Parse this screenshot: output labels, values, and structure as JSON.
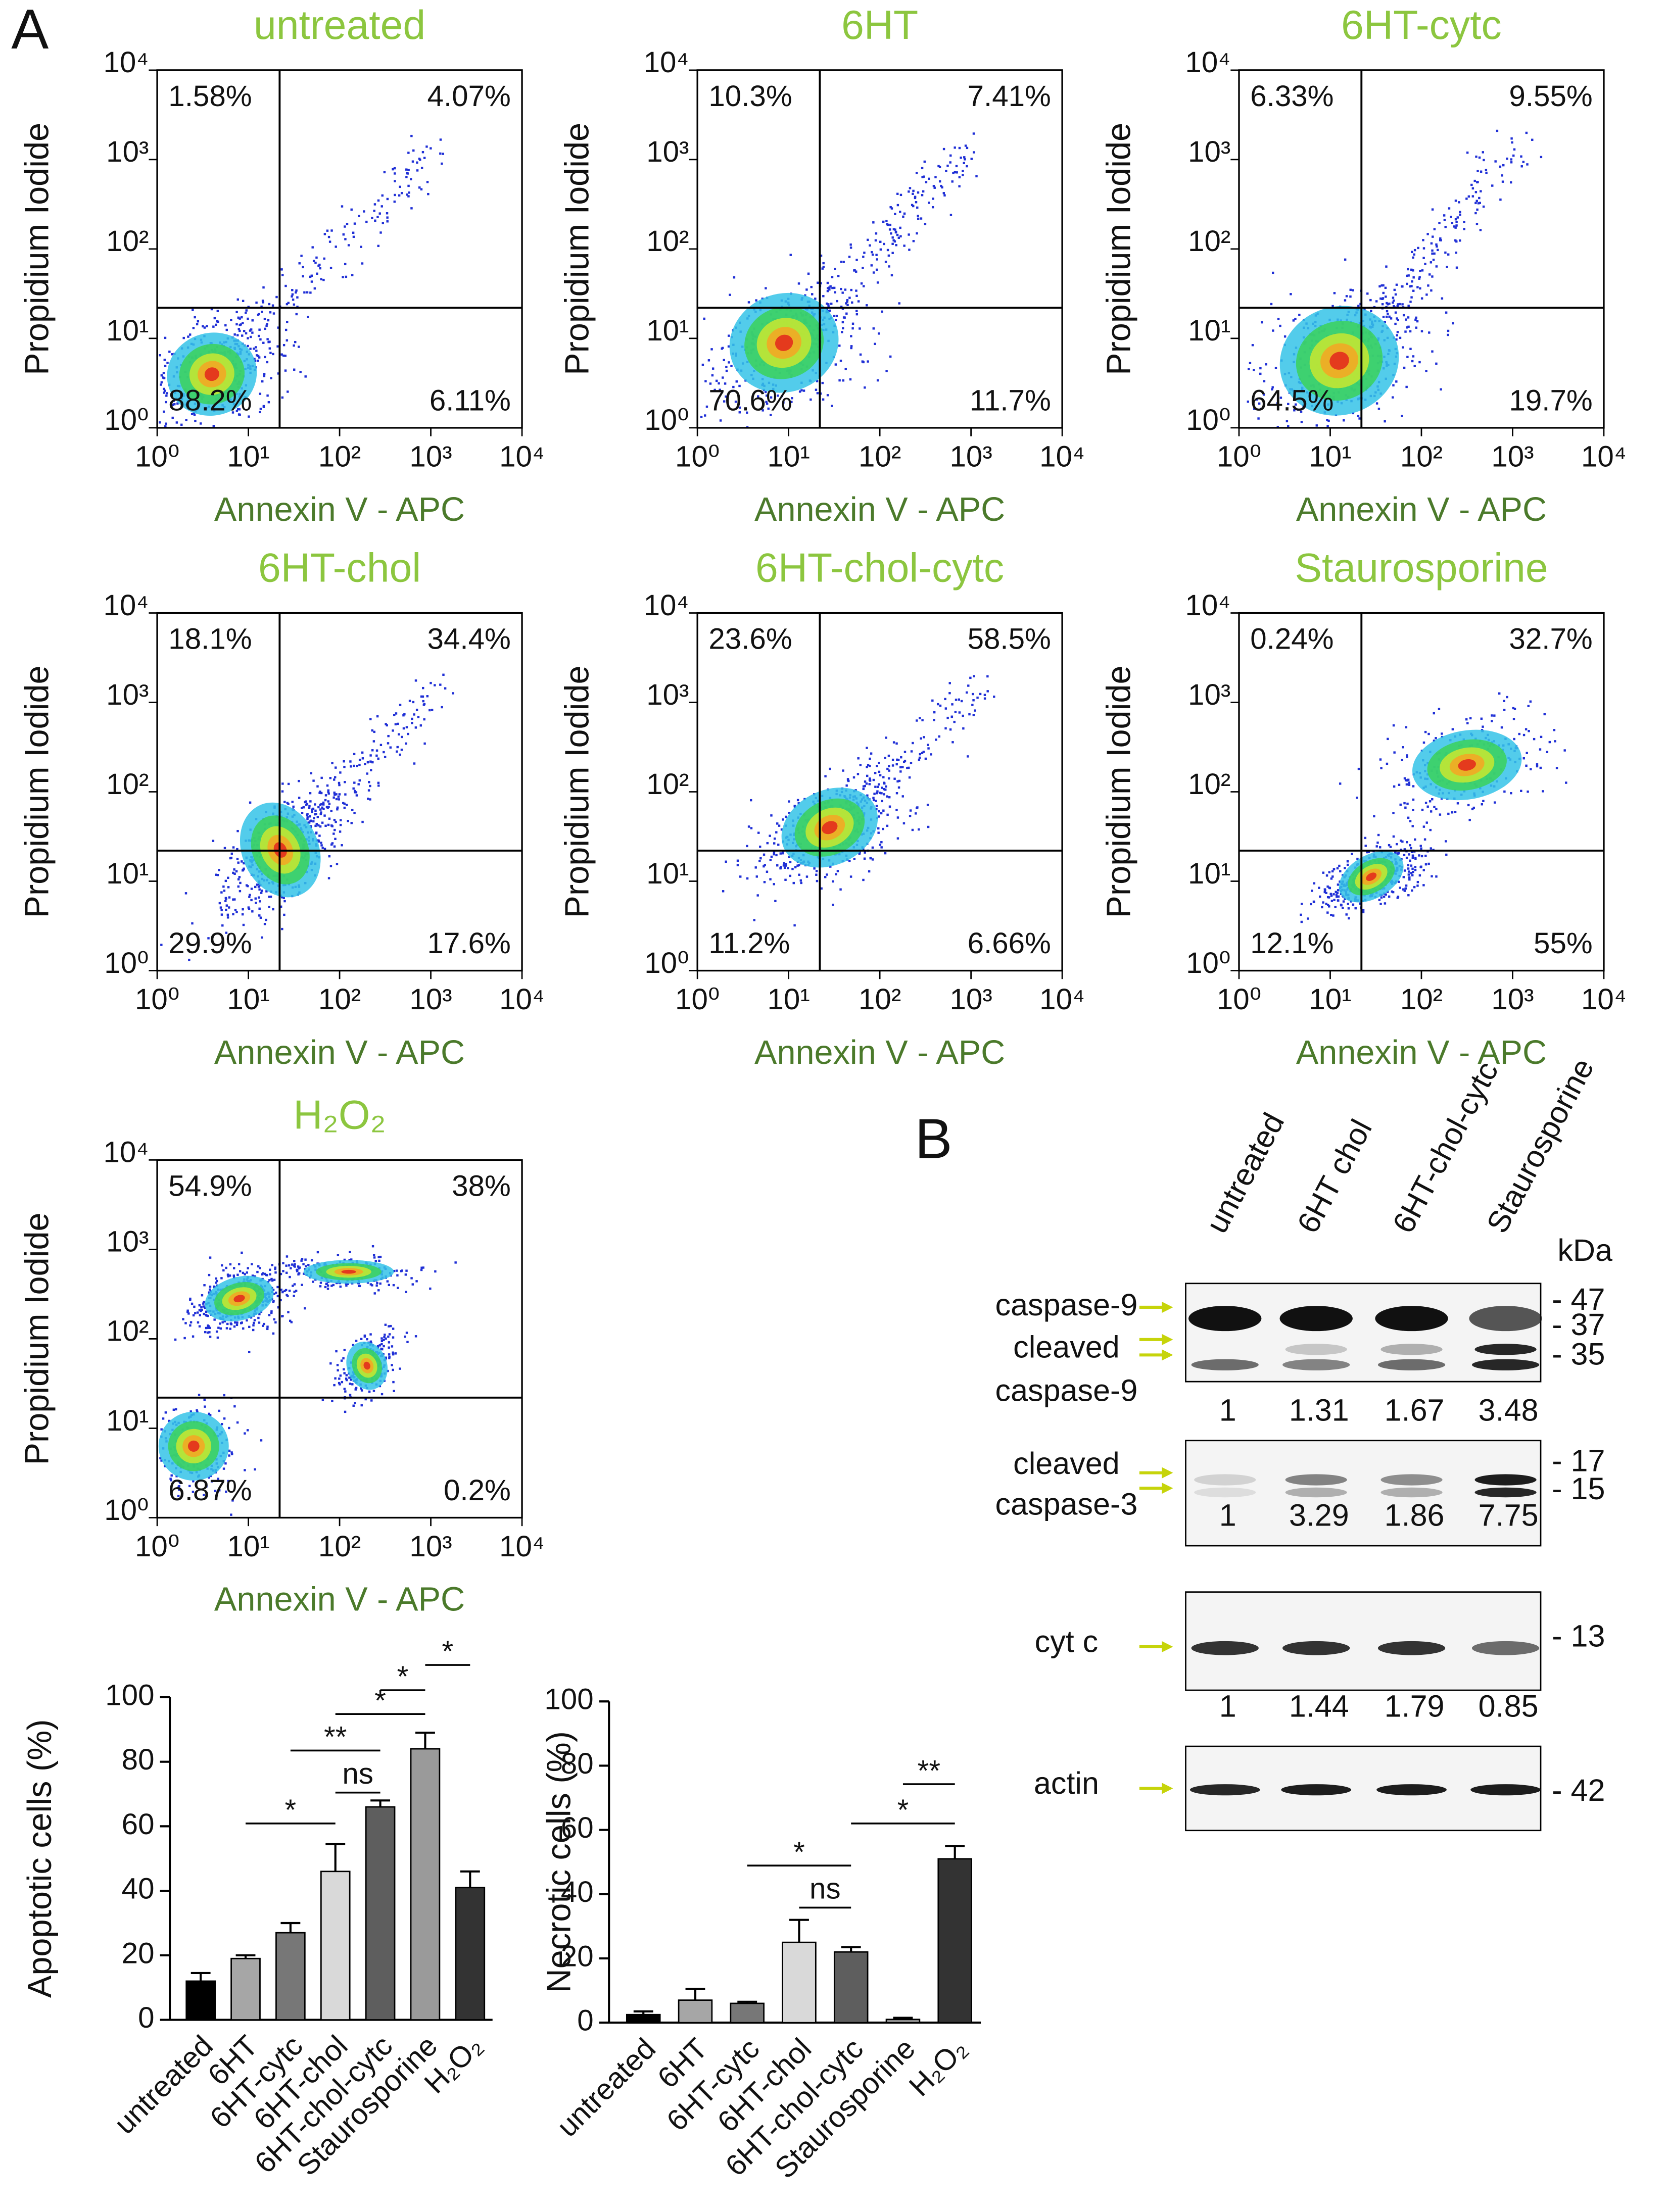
{
  "panel_a": "A",
  "panel_b": "B",
  "flow_cytometry": {
    "type": "scatter",
    "log_scale": true,
    "x_label": "Annexin V - APC",
    "y_label": "Propidium Iodide",
    "xlim": [
      1,
      10000
    ],
    "ylim": [
      1,
      10000
    ],
    "ticks": [
      {
        "value": 1,
        "label": "10⁰"
      },
      {
        "value": 10,
        "label": "10¹"
      },
      {
        "value": 100,
        "label": "10²"
      },
      {
        "value": 1000,
        "label": "10³"
      },
      {
        "value": 10000,
        "label": "10⁴"
      }
    ],
    "plots": [
      {
        "title": "untreated",
        "quadrants": [
          "1.58%",
          "4.07%",
          "88.2%",
          "6.11%"
        ],
        "gate": [
          22,
          22
        ]
      },
      {
        "title": "6HT",
        "quadrants": [
          "10.3%",
          "7.41%",
          "70.6%",
          "11.7%"
        ],
        "gate": [
          22,
          22
        ]
      },
      {
        "title": "6HT-cytc",
        "quadrants": [
          "6.33%",
          "9.55%",
          "64.5%",
          "19.7%"
        ],
        "gate": [
          22,
          22
        ]
      },
      {
        "title": "6HT-chol",
        "quadrants": [
          "18.1%",
          "34.4%",
          "29.9%",
          "17.6%"
        ],
        "gate": [
          22,
          22
        ]
      },
      {
        "title": "6HT-chol-cytc",
        "quadrants": [
          "23.6%",
          "58.5%",
          "11.2%",
          "6.66%"
        ],
        "gate": [
          22,
          22
        ]
      },
      {
        "title": "Staurosporine",
        "quadrants": [
          "0.24%",
          "32.7%",
          "12.1%",
          "55%"
        ],
        "gate": [
          22,
          22
        ]
      },
      {
        "title": "H₂O₂",
        "quadrants": [
          "54.9%",
          "38%",
          "6.87%",
          "0.2%"
        ],
        "gate": [
          22,
          22
        ]
      }
    ]
  },
  "chart_data": [
    {
      "type": "bar",
      "ylabel": "Apoptotic cells (%)",
      "categories": [
        "untreated",
        "6HT",
        "6HT-cytc",
        "6HT-chol",
        "6HT-chol-cytc",
        "Staurosporine",
        "H₂O₂"
      ],
      "values": [
        12,
        19,
        27,
        46,
        66,
        84,
        41
      ],
      "errors": [
        2.5,
        1,
        3,
        8.5,
        2,
        5,
        5
      ],
      "colors": [
        "#000000",
        "#a6a6a6",
        "#777777",
        "#d9d9d9",
        "#5e5e5e",
        "#9a9a9a",
        "#333333"
      ],
      "ylim": [
        0,
        100
      ],
      "yticks": [
        0,
        20,
        40,
        60,
        80,
        100
      ],
      "annotations": [
        {
          "label": "*",
          "between": [
            "6HT",
            "6HT-chol"
          ]
        },
        {
          "label": "**",
          "between": [
            "6HT-cytc",
            "6HT-chol-cytc"
          ]
        },
        {
          "label": "ns",
          "between": [
            "6HT-chol",
            "6HT-chol-cytc"
          ]
        },
        {
          "label": "*",
          "between": [
            "6HT-chol",
            "Staurosporine"
          ]
        },
        {
          "label": "*",
          "between": [
            "6HT-chol-cytc",
            "Staurosporine"
          ]
        },
        {
          "label": "*",
          "between": [
            "Staurosporine",
            "H₂O₂"
          ]
        }
      ]
    },
    {
      "type": "bar",
      "ylabel": "Necrotic cells (%)",
      "categories": [
        "untreated",
        "6HT",
        "6HT-cytc",
        "6HT-chol",
        "6HT-chol-cytc",
        "Staurosporine",
        "H₂O₂"
      ],
      "values": [
        2.5,
        7,
        6,
        25,
        22,
        1,
        51
      ],
      "errors": [
        1,
        3.5,
        0.5,
        7,
        1.5,
        0.5,
        4
      ],
      "colors": [
        "#000000",
        "#a6a6a6",
        "#777777",
        "#d9d9d9",
        "#5e5e5e",
        "#9a9a9a",
        "#333333"
      ],
      "ylim": [
        0,
        100
      ],
      "yticks": [
        0,
        20,
        40,
        60,
        80,
        100
      ],
      "annotations": [
        {
          "label": "*",
          "between": [
            "6HT-cytc",
            "6HT-chol-cytc"
          ]
        },
        {
          "label": "ns",
          "between": [
            "6HT-chol",
            "6HT-chol-cytc"
          ]
        },
        {
          "label": "*",
          "between": [
            "6HT-chol-cytc",
            "H₂O₂"
          ]
        },
        {
          "label": "**",
          "between": [
            "Staurosporine",
            "H₂O₂"
          ]
        }
      ]
    }
  ],
  "western_blot": {
    "lanes": [
      "untreated",
      "6HT chol",
      "6HT-chol-cytc",
      "Staurosporine"
    ],
    "unit": "kDa",
    "blots": [
      {
        "labels": [
          "caspase-9",
          "cleaved",
          "caspase-9"
        ],
        "markers": [
          "- 47",
          "- 37",
          "- 35"
        ],
        "ratios": [
          1,
          1.31,
          1.67,
          3.48
        ]
      },
      {
        "labels": [
          "cleaved",
          "caspase-3"
        ],
        "markers": [
          "- 17",
          "- 15"
        ],
        "ratios": [
          1,
          3.29,
          1.86,
          7.75
        ]
      },
      {
        "labels": [
          "cyt c"
        ],
        "markers": [
          "- 13"
        ],
        "ratios": [
          1,
          1.44,
          1.79,
          0.85
        ]
      },
      {
        "labels": [
          "actin"
        ],
        "markers": [
          "- 42"
        ]
      }
    ]
  }
}
